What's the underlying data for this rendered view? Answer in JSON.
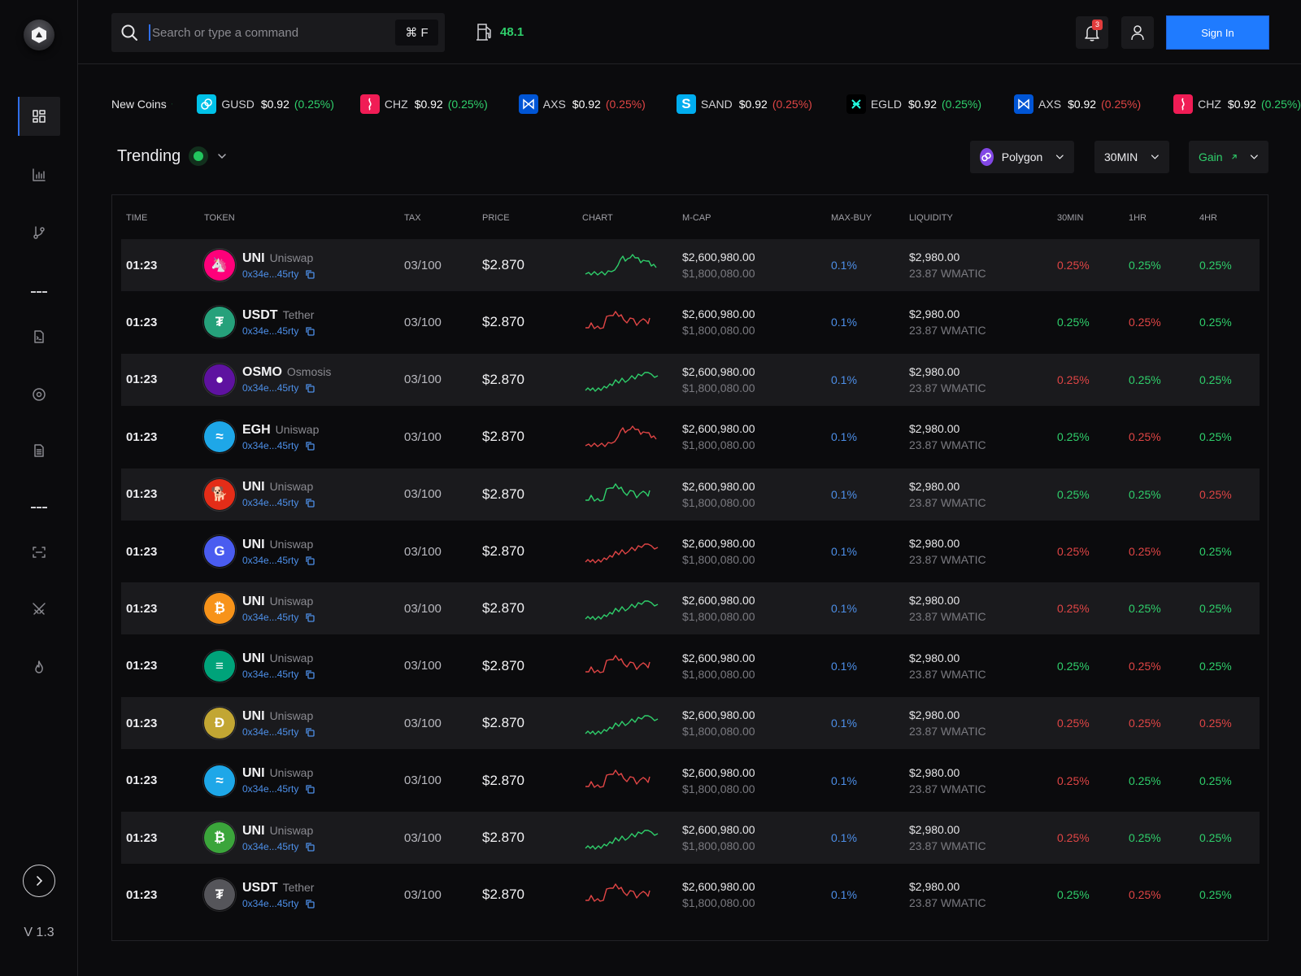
{
  "app": {
    "version": "V 1.3"
  },
  "sidebar": {
    "items": [
      {
        "name": "dashboard",
        "icon": "grid-icon",
        "active": true
      },
      {
        "name": "analytics",
        "icon": "bar-chart-icon"
      },
      {
        "name": "routes",
        "icon": "git-branch-icon"
      },
      {
        "name": "scripts",
        "icon": "file-terminal-icon"
      },
      {
        "name": "targets",
        "icon": "target-icon"
      },
      {
        "name": "documents",
        "icon": "document-icon"
      },
      {
        "name": "scan",
        "icon": "scan-icon"
      },
      {
        "name": "battle",
        "icon": "swords-icon"
      },
      {
        "name": "hot",
        "icon": "flame-icon"
      }
    ],
    "separator": "---",
    "expand_icon": "chevron-right-icon"
  },
  "topbar": {
    "search": {
      "placeholder": "Search or type a command",
      "value": "",
      "shortcut": "⌘ F"
    },
    "gas": {
      "value": "48.1",
      "icon": "gas-pump-icon"
    },
    "notifications": {
      "count": "3",
      "icon": "bell-icon"
    },
    "user_icon": "user-icon",
    "sign_in_label": "Sign In"
  },
  "ticker": {
    "label": "New Coins",
    "label_icon": "sprout-icon",
    "items": [
      {
        "symbol": "GUSD",
        "price": "$0.92",
        "change": "(0.25%)",
        "trend": "up",
        "color": "#00c2e8"
      },
      {
        "symbol": "CHZ",
        "price": "$0.92",
        "change": "(0.25%)",
        "trend": "up",
        "color": "#f01c55"
      },
      {
        "symbol": "AXS",
        "price": "$0.92",
        "change": "(0.25%)",
        "trend": "down",
        "color": "#0055d5"
      },
      {
        "symbol": "SAND",
        "price": "$0.92",
        "change": "(0.25%)",
        "trend": "down",
        "color": "#00adef"
      },
      {
        "symbol": "EGLD",
        "price": "$0.92",
        "change": "(0.25%)",
        "trend": "up",
        "color": "#000000"
      },
      {
        "symbol": "AXS",
        "price": "$0.92",
        "change": "(0.25%)",
        "trend": "down",
        "color": "#0055d5"
      },
      {
        "symbol": "CHZ",
        "price": "$0.92",
        "change": "(0.25%)",
        "trend": "up",
        "color": "#f01c55"
      }
    ]
  },
  "trending": {
    "title": "Trending",
    "filters": {
      "chain": "Polygon",
      "interval": "30MIN",
      "sort": "Gain"
    }
  },
  "colors": {
    "up": "#2fcf6b",
    "down": "#e04545",
    "accent": "#1f7bff",
    "link": "#4d8fe8"
  },
  "table": {
    "columns": [
      "TIME",
      "TOKEN",
      "TAX",
      "PRICE",
      "CHART",
      "M-CAP",
      "MAX-BUY",
      "LIQUIDITY",
      "30MIN",
      "1HR",
      "4HR"
    ],
    "rows": [
      {
        "time": "01:23",
        "symbol": "UNI",
        "name": "Uniswap",
        "address": "0x34e...45rty",
        "icon_color": "#ff007a",
        "icon_glyph": "🦄",
        "tax": "03/100",
        "price": "$2.870",
        "chart": "A",
        "chart_trend": "up",
        "mcap": "$2,600,980.00",
        "mcap2": "$1,800,080.00",
        "maxbuy": "0.1%",
        "liq": "$2,980.00",
        "liq2": "23.87 WMATIC",
        "p30": "0.25%",
        "p30t": "down",
        "p1h": "0.25%",
        "p1ht": "up",
        "p4h": "0.25%",
        "p4ht": "up"
      },
      {
        "time": "01:23",
        "symbol": "USDT",
        "name": "Tether",
        "address": "0x34e...45rty",
        "icon_color": "#26a17b",
        "icon_glyph": "₮",
        "tax": "03/100",
        "price": "$2.870",
        "chart": "B",
        "chart_trend": "down",
        "mcap": "$2,600,980.00",
        "mcap2": "$1,800,080.00",
        "maxbuy": "0.1%",
        "liq": "$2,980.00",
        "liq2": "23.87 WMATIC",
        "p30": "0.25%",
        "p30t": "up",
        "p1h": "0.25%",
        "p1ht": "down",
        "p4h": "0.25%",
        "p4ht": "up"
      },
      {
        "time": "01:23",
        "symbol": "OSMO",
        "name": "Osmosis",
        "address": "0x34e...45rty",
        "icon_color": "#5e12a0",
        "icon_glyph": "●",
        "tax": "03/100",
        "price": "$2.870",
        "chart": "C",
        "chart_trend": "up",
        "mcap": "$2,600,980.00",
        "mcap2": "$1,800,080.00",
        "maxbuy": "0.1%",
        "liq": "$2,980.00",
        "liq2": "23.87 WMATIC",
        "p30": "0.25%",
        "p30t": "down",
        "p1h": "0.25%",
        "p1ht": "up",
        "p4h": "0.25%",
        "p4ht": "up"
      },
      {
        "time": "01:23",
        "symbol": "EGH",
        "name": "Uniswap",
        "address": "0x34e...45rty",
        "icon_color": "#1ea7e8",
        "icon_glyph": "≈",
        "tax": "03/100",
        "price": "$2.870",
        "chart": "A",
        "chart_trend": "down",
        "mcap": "$2,600,980.00",
        "mcap2": "$1,800,080.00",
        "maxbuy": "0.1%",
        "liq": "$2,980.00",
        "liq2": "23.87 WMATIC",
        "p30": "0.25%",
        "p30t": "up",
        "p1h": "0.25%",
        "p1ht": "down",
        "p4h": "0.25%",
        "p4ht": "up"
      },
      {
        "time": "01:23",
        "symbol": "UNI",
        "name": "Uniswap",
        "address": "0x34e...45rty",
        "icon_color": "#e42d18",
        "icon_glyph": "🐕",
        "tax": "03/100",
        "price": "$2.870",
        "chart": "B",
        "chart_trend": "up",
        "mcap": "$2,600,980.00",
        "mcap2": "$1,800,080.00",
        "maxbuy": "0.1%",
        "liq": "$2,980.00",
        "liq2": "23.87 WMATIC",
        "p30": "0.25%",
        "p30t": "up",
        "p1h": "0.25%",
        "p1ht": "up",
        "p4h": "0.25%",
        "p4ht": "down"
      },
      {
        "time": "01:23",
        "symbol": "UNI",
        "name": "Uniswap",
        "address": "0x34e...45rty",
        "icon_color": "#4a5cf0",
        "icon_glyph": "G",
        "tax": "03/100",
        "price": "$2.870",
        "chart": "C",
        "chart_trend": "down",
        "mcap": "$2,600,980.00",
        "mcap2": "$1,800,080.00",
        "maxbuy": "0.1%",
        "liq": "$2,980.00",
        "liq2": "23.87 WMATIC",
        "p30": "0.25%",
        "p30t": "down",
        "p1h": "0.25%",
        "p1ht": "down",
        "p4h": "0.25%",
        "p4ht": "up"
      },
      {
        "time": "01:23",
        "symbol": "UNI",
        "name": "Uniswap",
        "address": "0x34e...45rty",
        "icon_color": "#f7931a",
        "icon_glyph": "₿",
        "tax": "03/100",
        "price": "$2.870",
        "chart": "C",
        "chart_trend": "up",
        "mcap": "$2,600,980.00",
        "mcap2": "$1,800,080.00",
        "maxbuy": "0.1%",
        "liq": "$2,980.00",
        "liq2": "23.87 WMATIC",
        "p30": "0.25%",
        "p30t": "down",
        "p1h": "0.25%",
        "p1ht": "up",
        "p4h": "0.25%",
        "p4ht": "up"
      },
      {
        "time": "01:23",
        "symbol": "UNI",
        "name": "Uniswap",
        "address": "0x34e...45rty",
        "icon_color": "#00a37a",
        "icon_glyph": "≡",
        "tax": "03/100",
        "price": "$2.870",
        "chart": "B",
        "chart_trend": "down",
        "mcap": "$2,600,980.00",
        "mcap2": "$1,800,080.00",
        "maxbuy": "0.1%",
        "liq": "$2,980.00",
        "liq2": "23.87 WMATIC",
        "p30": "0.25%",
        "p30t": "up",
        "p1h": "0.25%",
        "p1ht": "down",
        "p4h": "0.25%",
        "p4ht": "up"
      },
      {
        "time": "01:23",
        "symbol": "UNI",
        "name": "Uniswap",
        "address": "0x34e...45rty",
        "icon_color": "#c2a633",
        "icon_glyph": "Ð",
        "tax": "03/100",
        "price": "$2.870",
        "chart": "C",
        "chart_trend": "up",
        "mcap": "$2,600,980.00",
        "mcap2": "$1,800,080.00",
        "maxbuy": "0.1%",
        "liq": "$2,980.00",
        "liq2": "23.87 WMATIC",
        "p30": "0.25%",
        "p30t": "down",
        "p1h": "0.25%",
        "p1ht": "down",
        "p4h": "0.25%",
        "p4ht": "down"
      },
      {
        "time": "01:23",
        "symbol": "UNI",
        "name": "Uniswap",
        "address": "0x34e...45rty",
        "icon_color": "#1ea7e8",
        "icon_glyph": "≈",
        "tax": "03/100",
        "price": "$2.870",
        "chart": "B",
        "chart_trend": "down",
        "mcap": "$2,600,980.00",
        "mcap2": "$1,800,080.00",
        "maxbuy": "0.1%",
        "liq": "$2,980.00",
        "liq2": "23.87 WMATIC",
        "p30": "0.25%",
        "p30t": "down",
        "p1h": "0.25%",
        "p1ht": "up",
        "p4h": "0.25%",
        "p4ht": "up"
      },
      {
        "time": "01:23",
        "symbol": "UNI",
        "name": "Uniswap",
        "address": "0x34e...45rty",
        "icon_color": "#3ba53b",
        "icon_glyph": "₿",
        "tax": "03/100",
        "price": "$2.870",
        "chart": "C",
        "chart_trend": "up",
        "mcap": "$2,600,980.00",
        "mcap2": "$1,800,080.00",
        "maxbuy": "0.1%",
        "liq": "$2,980.00",
        "liq2": "23.87 WMATIC",
        "p30": "0.25%",
        "p30t": "down",
        "p1h": "0.25%",
        "p1ht": "up",
        "p4h": "0.25%",
        "p4ht": "up"
      },
      {
        "time": "01:23",
        "symbol": "USDT",
        "name": "Tether",
        "address": "0x34e...45rty",
        "icon_color": "#55555a",
        "icon_glyph": "₮",
        "tax": "03/100",
        "price": "$2.870",
        "chart": "B",
        "chart_trend": "down",
        "mcap": "$2,600,980.00",
        "mcap2": "$1,800,080.00",
        "maxbuy": "0.1%",
        "liq": "$2,980.00",
        "liq2": "23.87 WMATIC",
        "p30": "0.25%",
        "p30t": "up",
        "p1h": "0.25%",
        "p1ht": "down",
        "p4h": "0.25%",
        "p4ht": "up"
      }
    ]
  }
}
